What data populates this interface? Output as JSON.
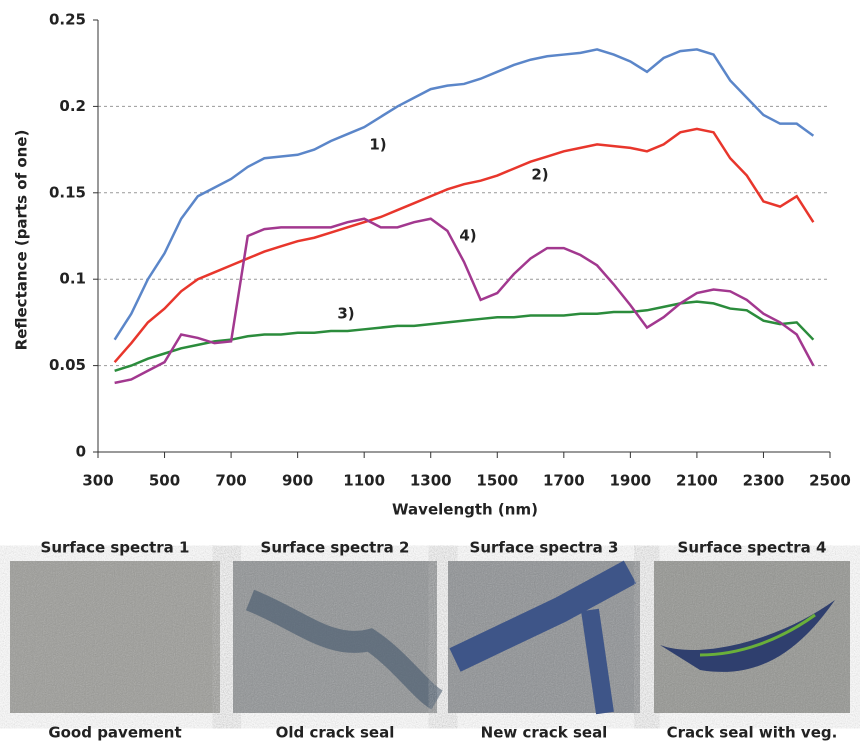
{
  "chart_data": {
    "type": "line",
    "xlabel": "Wavelength (nm)",
    "ylabel": "Reflectance (parts of one)",
    "x": [
      350,
      400,
      450,
      500,
      550,
      600,
      650,
      700,
      750,
      800,
      850,
      900,
      950,
      1000,
      1050,
      1100,
      1150,
      1200,
      1250,
      1300,
      1350,
      1400,
      1450,
      1500,
      1550,
      1600,
      1650,
      1700,
      1750,
      1800,
      1850,
      1900,
      1950,
      2000,
      2050,
      2100,
      2150,
      2200,
      2250,
      2300,
      2350,
      2400,
      2450
    ],
    "series": [
      {
        "color": "#5b86c9",
        "values": [
          0.065,
          0.08,
          0.1,
          0.115,
          0.135,
          0.148,
          0.153,
          0.158,
          0.165,
          0.17,
          0.171,
          0.172,
          0.175,
          0.18,
          0.184,
          0.188,
          0.194,
          0.2,
          0.205,
          0.21,
          0.212,
          0.213,
          0.216,
          0.22,
          0.224,
          0.227,
          0.229,
          0.23,
          0.231,
          0.233,
          0.23,
          0.226,
          0.22,
          0.228,
          0.232,
          0.233,
          0.23,
          0.215,
          0.205,
          0.195,
          0.19,
          0.19,
          0.183
        ]
      },
      {
        "color": "#e8362c",
        "values": [
          0.052,
          0.063,
          0.075,
          0.083,
          0.093,
          0.1,
          0.104,
          0.108,
          0.112,
          0.116,
          0.119,
          0.122,
          0.124,
          0.127,
          0.13,
          0.133,
          0.136,
          0.14,
          0.144,
          0.148,
          0.152,
          0.155,
          0.157,
          0.16,
          0.164,
          0.168,
          0.171,
          0.174,
          0.176,
          0.178,
          0.177,
          0.176,
          0.174,
          0.178,
          0.185,
          0.187,
          0.185,
          0.17,
          0.16,
          0.145,
          0.142,
          0.148,
          0.133
        ]
      },
      {
        "color": "#2b8c3c",
        "values": [
          0.047,
          0.05,
          0.054,
          0.057,
          0.06,
          0.062,
          0.064,
          0.065,
          0.067,
          0.068,
          0.068,
          0.069,
          0.069,
          0.07,
          0.07,
          0.071,
          0.072,
          0.073,
          0.073,
          0.074,
          0.075,
          0.076,
          0.077,
          0.078,
          0.078,
          0.079,
          0.079,
          0.079,
          0.08,
          0.08,
          0.081,
          0.081,
          0.082,
          0.084,
          0.086,
          0.087,
          0.086,
          0.083,
          0.082,
          0.076,
          0.074,
          0.075,
          0.065
        ]
      },
      {
        "color": "#a2388f",
        "values": [
          0.04,
          0.042,
          0.047,
          0.052,
          0.068,
          0.066,
          0.063,
          0.064,
          0.125,
          0.129,
          0.13,
          0.13,
          0.13,
          0.13,
          0.133,
          0.135,
          0.13,
          0.13,
          0.133,
          0.135,
          0.128,
          0.11,
          0.088,
          0.092,
          0.103,
          0.112,
          0.118,
          0.118,
          0.114,
          0.108,
          0.097,
          0.085,
          0.072,
          0.078,
          0.086,
          0.092,
          0.094,
          0.093,
          0.088,
          0.08,
          0.075,
          0.068,
          0.05
        ]
      }
    ],
    "annotations": [
      "1)",
      "2)",
      "3)",
      "4)"
    ],
    "xlim": [
      300,
      2500
    ],
    "xticks": [
      300,
      500,
      700,
      900,
      1100,
      1300,
      1500,
      1700,
      1900,
      2100,
      2300,
      2500
    ],
    "ylim": [
      0,
      0.25
    ],
    "yticks": [
      0,
      0.05,
      0.1,
      0.15,
      0.2,
      0.25
    ],
    "grid": true
  },
  "panels": [
    {
      "title": "Surface spectra 1",
      "caption": "Good pavement"
    },
    {
      "title": "Surface spectra 2",
      "caption": "Old crack seal"
    },
    {
      "title": "Surface spectra 3",
      "caption": "New crack seal"
    },
    {
      "title": "Surface spectra 4",
      "caption": "Crack seal with veg."
    }
  ]
}
